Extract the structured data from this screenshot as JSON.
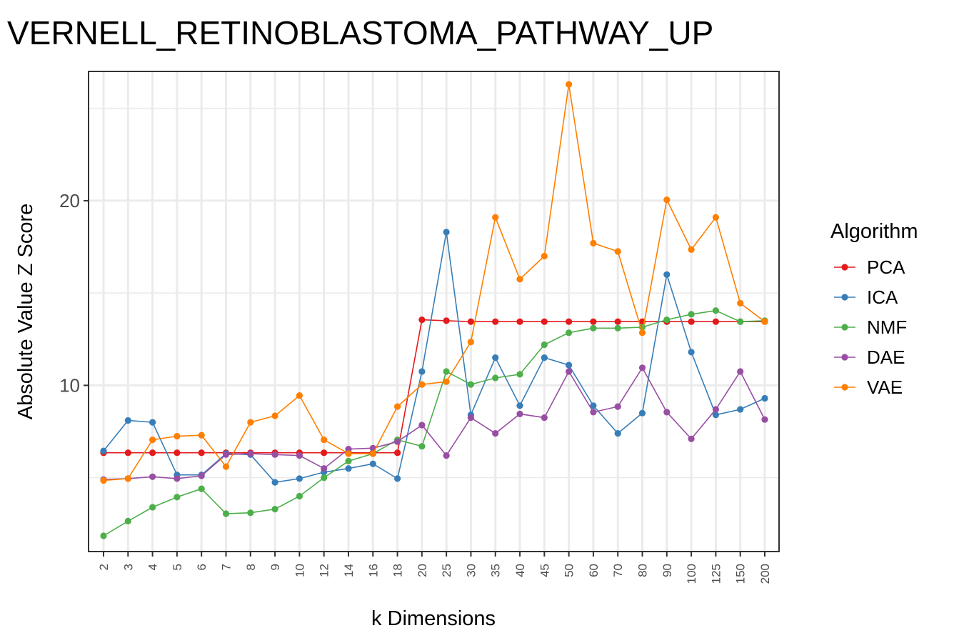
{
  "chart_data": {
    "type": "line",
    "title": "VERNELL_RETINOBLASTOMA_PATHWAY_UP",
    "xlabel": "k Dimensions",
    "ylabel": "Absolute Value Z Score",
    "categories": [
      "2",
      "3",
      "4",
      "5",
      "6",
      "7",
      "8",
      "9",
      "10",
      "12",
      "14",
      "16",
      "18",
      "20",
      "25",
      "30",
      "35",
      "40",
      "45",
      "50",
      "60",
      "70",
      "80",
      "90",
      "100",
      "125",
      "150",
      "200"
    ],
    "yticks": [
      10,
      20
    ],
    "ylim": [
      1.0,
      27.0
    ],
    "grid": true,
    "legend": {
      "title": "Algorithm",
      "position": "right"
    },
    "series": [
      {
        "name": "PCA",
        "color": "#e41a1c",
        "values": [
          6.35,
          6.35,
          6.35,
          6.35,
          6.35,
          6.35,
          6.35,
          6.35,
          6.35,
          6.35,
          6.35,
          6.35,
          6.35,
          13.55,
          13.5,
          13.45,
          13.45,
          13.45,
          13.45,
          13.45,
          13.45,
          13.45,
          13.45,
          13.45,
          13.45,
          13.45,
          13.45,
          13.45
        ]
      },
      {
        "name": "ICA",
        "color": "#377eb8",
        "values": [
          6.45,
          8.1,
          8.0,
          5.15,
          5.15,
          6.3,
          6.25,
          4.75,
          4.95,
          5.3,
          5.5,
          5.75,
          4.95,
          10.75,
          18.3,
          8.4,
          11.5,
          8.9,
          11.5,
          11.1,
          8.9,
          7.4,
          8.5,
          16.0,
          11.8,
          8.4,
          8.7,
          9.3
        ]
      },
      {
        "name": "NMF",
        "color": "#4daf4a",
        "values": [
          1.85,
          2.65,
          3.4,
          3.95,
          4.4,
          3.05,
          3.1,
          3.3,
          4.0,
          5.0,
          5.9,
          6.3,
          7.05,
          6.7,
          10.75,
          10.05,
          10.4,
          10.6,
          12.2,
          12.85,
          13.1,
          13.1,
          13.15,
          13.55,
          13.85,
          14.05,
          13.45,
          13.5
        ]
      },
      {
        "name": "DAE",
        "color": "#984ea3",
        "values": [
          4.9,
          4.95,
          5.05,
          4.95,
          5.1,
          6.25,
          6.3,
          6.25,
          6.2,
          5.5,
          6.55,
          6.6,
          6.95,
          7.85,
          6.2,
          8.25,
          7.4,
          8.45,
          8.25,
          10.75,
          8.55,
          8.85,
          10.95,
          8.55,
          7.1,
          8.7,
          10.75,
          8.15
        ]
      },
      {
        "name": "VAE",
        "color": "#ff7f00",
        "values": [
          4.85,
          4.95,
          7.05,
          7.25,
          7.3,
          5.6,
          8.0,
          8.35,
          9.45,
          7.05,
          6.3,
          6.3,
          8.85,
          10.05,
          10.2,
          12.35,
          19.1,
          15.75,
          17.0,
          26.3,
          17.7,
          17.25,
          12.85,
          20.05,
          17.35,
          19.1,
          14.45,
          13.45
        ]
      }
    ]
  }
}
